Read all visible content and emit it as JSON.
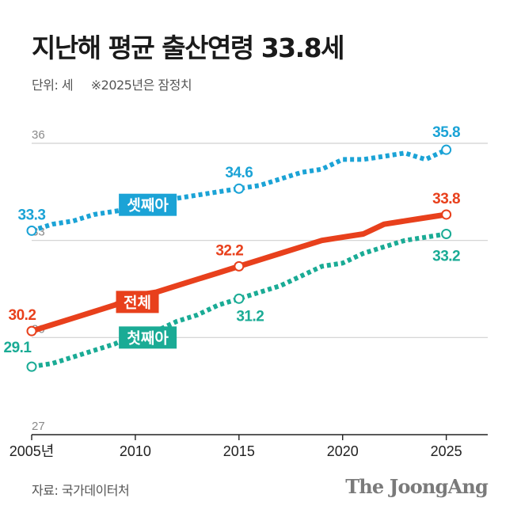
{
  "title": "지난해 평균 출산연령 33.8세",
  "unit_label": "단위: 세",
  "note": "※2025년은 잠정치",
  "source": "자료: 국가데이터처",
  "logo": "The JoongAng",
  "colors": {
    "total": "#e8401c",
    "third": "#1ba3d6",
    "first": "#1aab95",
    "grid": "#d0d0d0",
    "axis": "#222222"
  },
  "chart_data": {
    "type": "line",
    "ylim": [
      27,
      36
    ],
    "yticks": [
      "27",
      "30",
      "33",
      "36"
    ],
    "xlim": [
      2005,
      2027
    ],
    "xticks": [
      {
        "x": 2005,
        "label": "2005년"
      },
      {
        "x": 2010,
        "label": "2010"
      },
      {
        "x": 2015,
        "label": "2015"
      },
      {
        "x": 2020,
        "label": "2020"
      },
      {
        "x": 2025,
        "label": "2025"
      }
    ],
    "grid": true,
    "series": [
      {
        "key": "third",
        "name": "셋째아",
        "style": "dotted",
        "x": [
          2005,
          2006,
          2007,
          2008,
          2009,
          2010,
          2011,
          2012,
          2013,
          2014,
          2015,
          2016,
          2017,
          2018,
          2019,
          2020,
          2021,
          2022,
          2023,
          2024,
          2025
        ],
        "values": [
          33.3,
          33.5,
          33.6,
          33.8,
          33.9,
          34.0,
          34.1,
          34.3,
          34.4,
          34.5,
          34.6,
          34.7,
          34.9,
          35.1,
          35.2,
          35.5,
          35.5,
          35.6,
          35.7,
          35.5,
          35.8
        ],
        "labels": [
          {
            "x": 2005,
            "text": "33.3"
          },
          {
            "x": 2015,
            "text": "34.6"
          },
          {
            "x": 2025,
            "text": "35.8"
          }
        ]
      },
      {
        "key": "total",
        "name": "전체",
        "style": "solid",
        "x": [
          2005,
          2006,
          2007,
          2008,
          2009,
          2010,
          2011,
          2012,
          2013,
          2014,
          2015,
          2016,
          2017,
          2018,
          2019,
          2020,
          2021,
          2022,
          2023,
          2024,
          2025
        ],
        "values": [
          30.2,
          30.4,
          30.6,
          30.8,
          31.0,
          31.3,
          31.4,
          31.6,
          31.8,
          32.0,
          32.2,
          32.4,
          32.6,
          32.8,
          33.0,
          33.1,
          33.2,
          33.5,
          33.6,
          33.7,
          33.8
        ],
        "labels": [
          {
            "x": 2005,
            "text": "30.2"
          },
          {
            "x": 2015,
            "text": "32.2"
          },
          {
            "x": 2025,
            "text": "33.8"
          }
        ]
      },
      {
        "key": "first",
        "name": "첫째아",
        "style": "dotted",
        "x": [
          2005,
          2006,
          2007,
          2008,
          2009,
          2010,
          2011,
          2012,
          2013,
          2014,
          2015,
          2016,
          2017,
          2018,
          2019,
          2020,
          2021,
          2022,
          2023,
          2024,
          2025
        ],
        "values": [
          29.1,
          29.2,
          29.4,
          29.6,
          29.8,
          30.1,
          30.2,
          30.5,
          30.7,
          31.0,
          31.2,
          31.4,
          31.6,
          31.9,
          32.2,
          32.3,
          32.6,
          32.8,
          33.0,
          33.1,
          33.2
        ],
        "labels": [
          {
            "x": 2005,
            "text": "29.1"
          },
          {
            "x": 2015,
            "text": "31.2"
          },
          {
            "x": 2025,
            "text": "33.2"
          }
        ]
      }
    ]
  }
}
